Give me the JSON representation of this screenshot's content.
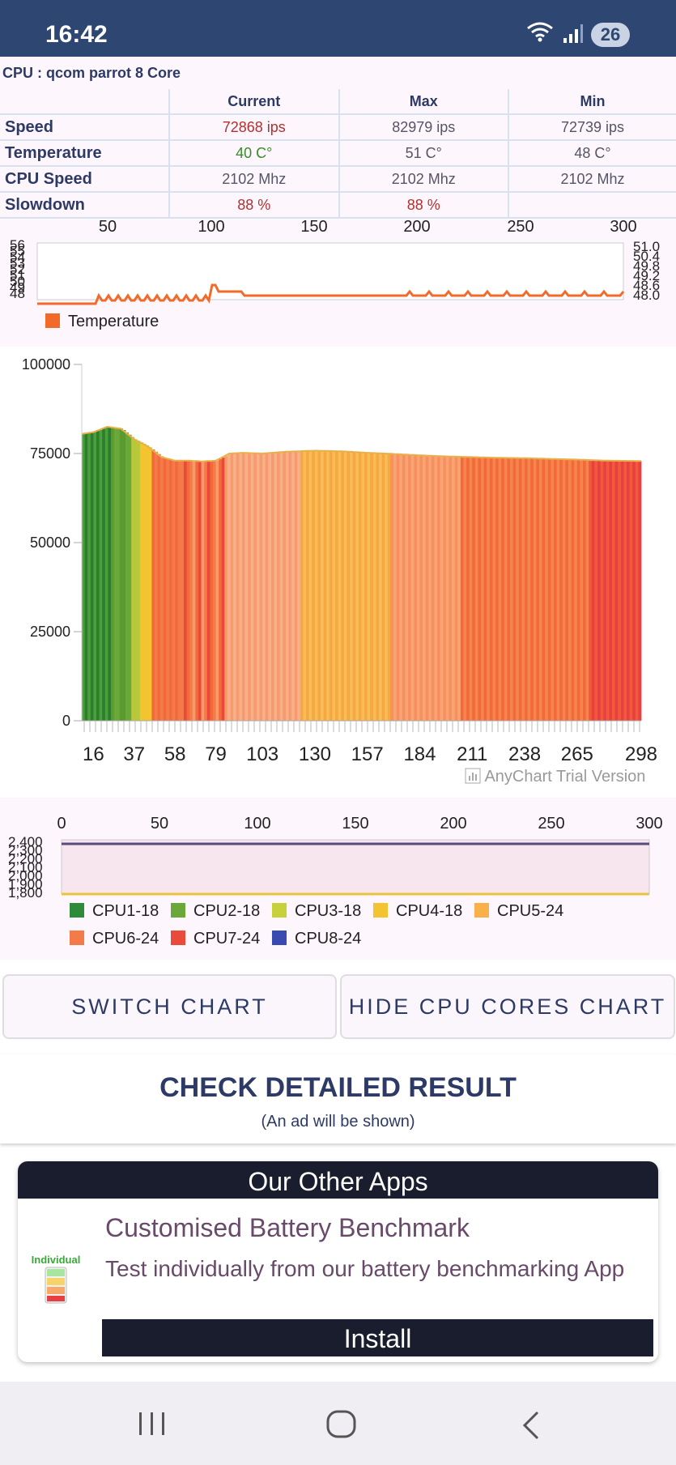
{
  "status": {
    "time": "16:42",
    "battery": "26",
    "wifi_icon": "wifi-icon",
    "signal_icon": "signal-icon"
  },
  "cpu_title": "CPU : qcom parrot 8 Core",
  "table": {
    "headers": [
      "Current",
      "Max",
      "Min"
    ],
    "rows": [
      {
        "label": "Speed",
        "current": "72868 ips",
        "max": "82979 ips",
        "min": "72739 ips"
      },
      {
        "label": "Temperature",
        "current": "40 C°",
        "max": "51 C°",
        "min": "48 C°"
      },
      {
        "label": "CPU Speed",
        "current": "2102 Mhz",
        "max": "2102 Mhz",
        "min": "2102 Mhz"
      },
      {
        "label": "Slowdown",
        "current": "88 %",
        "max": "88 %",
        "min": ""
      }
    ]
  },
  "temp_chart": {
    "type": "line",
    "x_ticks": [
      "50",
      "100",
      "150",
      "200",
      "250",
      "300"
    ],
    "y_left_ticks": [
      "56",
      "55",
      "54",
      "53",
      "52",
      "51",
      "50",
      "49",
      "48"
    ],
    "y_right_ticks": [
      "51.0",
      "50.4",
      "49.8",
      "49.2",
      "48.6",
      "48.0"
    ],
    "legend": "Temperature",
    "color": "#f26a2a"
  },
  "chart_data": {
    "type": "area",
    "y_ticks": [
      "100000",
      "75000",
      "50000",
      "25000",
      "0"
    ],
    "x_ticks": [
      "16",
      "37",
      "58",
      "79",
      "103",
      "130",
      "157",
      "184",
      "211",
      "238",
      "265",
      "298"
    ],
    "ylim": [
      0,
      100000
    ],
    "x": [
      10,
      16,
      23,
      30,
      37,
      44,
      51,
      58,
      65,
      72,
      79,
      86,
      93,
      103,
      115,
      130,
      145,
      157,
      170,
      184,
      197,
      211,
      224,
      238,
      251,
      265,
      280,
      298
    ],
    "values": [
      80500,
      81000,
      82500,
      82000,
      79000,
      77000,
      74000,
      73000,
      73000,
      72800,
      73000,
      75000,
      75200,
      75000,
      75500,
      75800,
      75600,
      75200,
      74900,
      74500,
      74200,
      74000,
      73800,
      73700,
      73500,
      73300,
      73000,
      72900
    ],
    "credit": "AnyChart Trial Version"
  },
  "cores_chart": {
    "x_ticks": [
      "0",
      "50",
      "100",
      "150",
      "200",
      "250",
      "300"
    ],
    "y_ticks": [
      "2,400",
      "2,300",
      "2,200",
      "2,100",
      "2,000",
      "1,900",
      "1,800"
    ],
    "legend": [
      {
        "name": "CPU1-18",
        "color": "#2e8b3a"
      },
      {
        "name": "CPU2-18",
        "color": "#6aa83a"
      },
      {
        "name": "CPU3-18",
        "color": "#c8d03a"
      },
      {
        "name": "CPU4-18",
        "color": "#f4c430"
      },
      {
        "name": "CPU5-24",
        "color": "#f9b04a"
      },
      {
        "name": "CPU6-24",
        "color": "#f47a4a"
      },
      {
        "name": "CPU7-24",
        "color": "#ea4a3a"
      },
      {
        "name": "CPU8-24",
        "color": "#3a4ab0"
      }
    ]
  },
  "buttons": {
    "switch": "SWITCH CHART",
    "hide": "HIDE CPU CORES CHART"
  },
  "check": {
    "title": "CHECK DETAILED RESULT",
    "subtitle": "(An ad will be shown)"
  },
  "other_apps": {
    "header": "Our Other Apps",
    "app_name": "Customised Battery Benchmark",
    "app_desc": "Test individually from our battery benchmarking App",
    "icon_label": "Individual",
    "install": "Install"
  }
}
